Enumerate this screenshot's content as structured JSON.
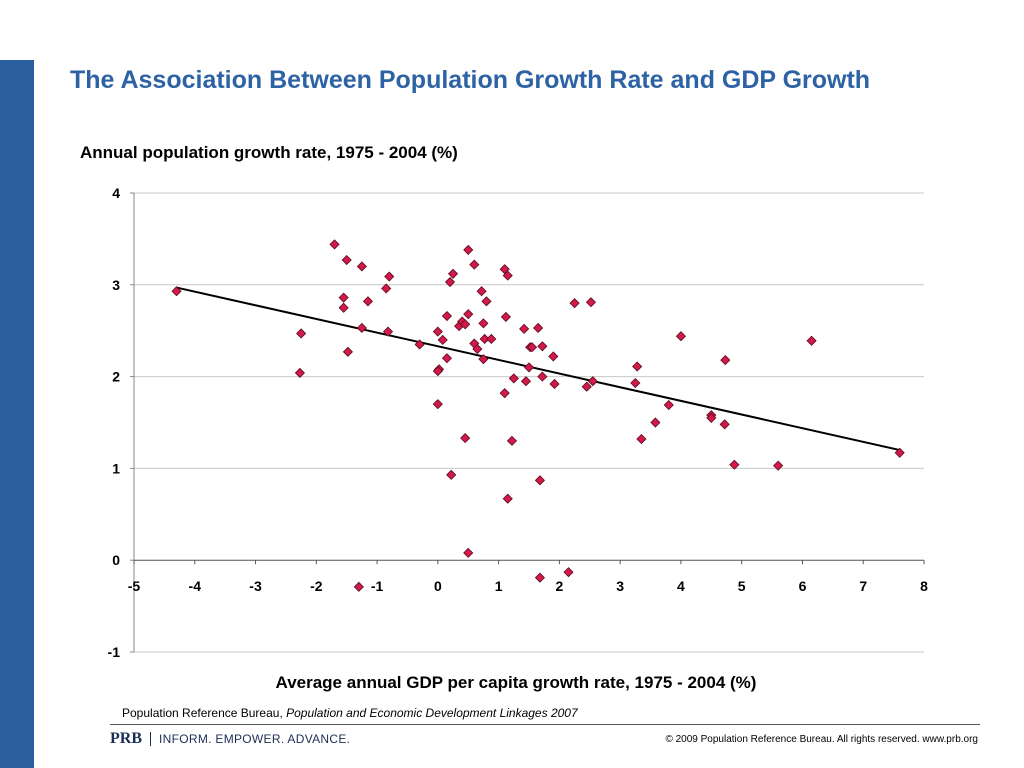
{
  "slide": {
    "title": "The Association Between Population Growth Rate and GDP Growth",
    "source_prefix": "Population Reference Bureau, ",
    "source_italic": "Population and Economic Development Linkages 2007",
    "brand_logo": "PRB",
    "brand_tagline": "INFORM. EMPOWER. ADVANCE.",
    "copyright": "© 2009 Population Reference Bureau. All rights reserved. www.prb.org",
    "accent_color": "#2d63a5",
    "sidebar_color": "#2a5fa0"
  },
  "chart_data": {
    "type": "scatter",
    "title": "",
    "ylabel": "Annual population growth rate, 1975 - 2004 (%)",
    "xlabel": "Average annual GDP per capita growth rate, 1975 - 2004 (%)",
    "xlim": [
      -5,
      8
    ],
    "ylim": [
      -1,
      4
    ],
    "x_ticks": [
      "-5",
      "-4",
      "-3",
      "-2",
      "-1",
      "0",
      "1",
      "2",
      "3",
      "4",
      "5",
      "6",
      "7",
      "8"
    ],
    "y_ticks": [
      "4",
      "3",
      "2",
      "1",
      "0",
      "-1"
    ],
    "grid": "horizontal",
    "marker_color": "#d11a4a",
    "marker_shape": "diamond",
    "points": [
      [
        -4.3,
        2.93
      ],
      [
        -2.25,
        2.47
      ],
      [
        -2.27,
        2.04
      ],
      [
        -1.7,
        3.44
      ],
      [
        -1.55,
        2.86
      ],
      [
        -1.55,
        2.75
      ],
      [
        -1.5,
        3.27
      ],
      [
        -1.48,
        2.27
      ],
      [
        -1.25,
        3.2
      ],
      [
        -1.25,
        2.53
      ],
      [
        -1.15,
        2.82
      ],
      [
        -1.3,
        -0.29
      ],
      [
        -0.85,
        2.96
      ],
      [
        -0.8,
        3.09
      ],
      [
        -0.82,
        2.49
      ],
      [
        -0.3,
        2.35
      ],
      [
        0.0,
        2.49
      ],
      [
        0.02,
        2.08
      ],
      [
        0.0,
        2.06
      ],
      [
        0.0,
        1.7
      ],
      [
        0.08,
        2.4
      ],
      [
        0.15,
        2.66
      ],
      [
        0.15,
        2.2
      ],
      [
        0.2,
        3.03
      ],
      [
        0.25,
        3.12
      ],
      [
        0.22,
        0.93
      ],
      [
        0.35,
        2.55
      ],
      [
        0.4,
        2.6
      ],
      [
        0.45,
        2.57
      ],
      [
        0.45,
        1.33
      ],
      [
        0.5,
        3.38
      ],
      [
        0.5,
        2.68
      ],
      [
        0.5,
        0.08
      ],
      [
        0.6,
        3.22
      ],
      [
        0.6,
        2.36
      ],
      [
        0.65,
        2.3
      ],
      [
        0.72,
        2.93
      ],
      [
        0.75,
        2.58
      ],
      [
        0.77,
        2.41
      ],
      [
        0.75,
        2.19
      ],
      [
        0.8,
        2.82
      ],
      [
        0.88,
        2.41
      ],
      [
        1.1,
        3.17
      ],
      [
        1.15,
        3.1
      ],
      [
        1.12,
        2.65
      ],
      [
        1.1,
        1.82
      ],
      [
        1.15,
        0.67
      ],
      [
        1.22,
        1.3
      ],
      [
        1.25,
        1.98
      ],
      [
        1.42,
        2.52
      ],
      [
        1.45,
        1.95
      ],
      [
        1.5,
        2.1
      ],
      [
        1.52,
        2.32
      ],
      [
        1.55,
        2.32
      ],
      [
        1.65,
        2.53
      ],
      [
        1.68,
        0.87
      ],
      [
        1.68,
        -0.19
      ],
      [
        1.72,
        2.33
      ],
      [
        1.72,
        2.0
      ],
      [
        1.9,
        2.22
      ],
      [
        1.92,
        1.92
      ],
      [
        2.15,
        -0.13
      ],
      [
        2.25,
        2.8
      ],
      [
        2.45,
        1.89
      ],
      [
        2.52,
        2.81
      ],
      [
        2.55,
        1.95
      ],
      [
        3.25,
        1.93
      ],
      [
        3.28,
        2.11
      ],
      [
        3.35,
        1.32
      ],
      [
        3.58,
        1.5
      ],
      [
        3.8,
        1.69
      ],
      [
        4.0,
        2.44
      ],
      [
        4.5,
        1.58
      ],
      [
        4.5,
        1.55
      ],
      [
        4.72,
        1.48
      ],
      [
        4.73,
        2.18
      ],
      [
        4.88,
        1.04
      ],
      [
        5.6,
        1.03
      ],
      [
        6.15,
        2.39
      ],
      [
        7.6,
        1.17
      ]
    ],
    "trendline": {
      "x": [
        -4.3,
        7.6
      ],
      "y": [
        2.97,
        1.2
      ]
    }
  }
}
